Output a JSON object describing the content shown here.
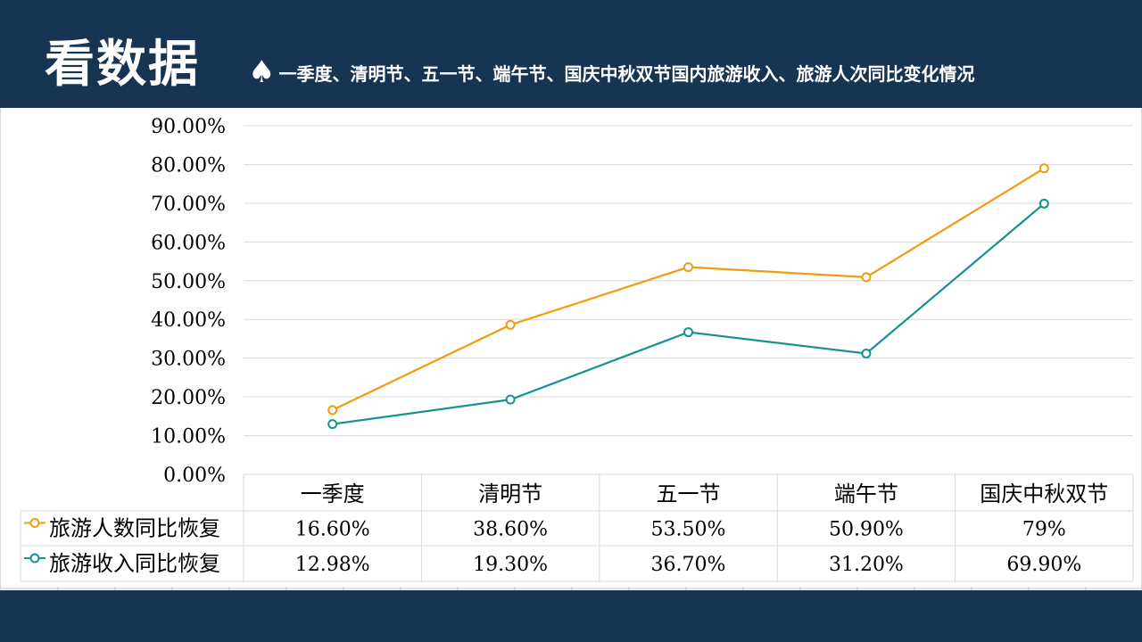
{
  "header": {
    "title": "看数据",
    "spade_icon": "spade-icon",
    "subtitle": "一季度、清明节、五一节、端午节、国庆中秋双节国内旅游收入、旅游人次同比变化情况"
  },
  "colors": {
    "header_bg": "#173553",
    "series_people": "#F39C12",
    "series_revenue": "#16938F"
  },
  "chart_data": {
    "type": "line",
    "categories": [
      "一季度",
      "清明节",
      "五一节",
      "端午节",
      "国庆中秋双节"
    ],
    "series": [
      {
        "name": "旅游人数同比恢复",
        "values": [
          16.6,
          38.6,
          53.5,
          50.9,
          79.0
        ],
        "labels": [
          "16.60%",
          "38.60%",
          "53.50%",
          "50.90%",
          "79%"
        ]
      },
      {
        "name": "旅游收入同比恢复",
        "values": [
          12.98,
          19.3,
          36.7,
          31.2,
          69.9
        ],
        "labels": [
          "12.98%",
          "19.30%",
          "36.70%",
          "31.20%",
          "69.90%"
        ]
      }
    ],
    "y_ticks": [
      "0.00%",
      "10.00%",
      "20.00%",
      "30.00%",
      "40.00%",
      "50.00%",
      "60.00%",
      "70.00%",
      "80.00%",
      "90.00%"
    ],
    "ylim": [
      0,
      90
    ],
    "grid": true,
    "legend": "data-table"
  }
}
